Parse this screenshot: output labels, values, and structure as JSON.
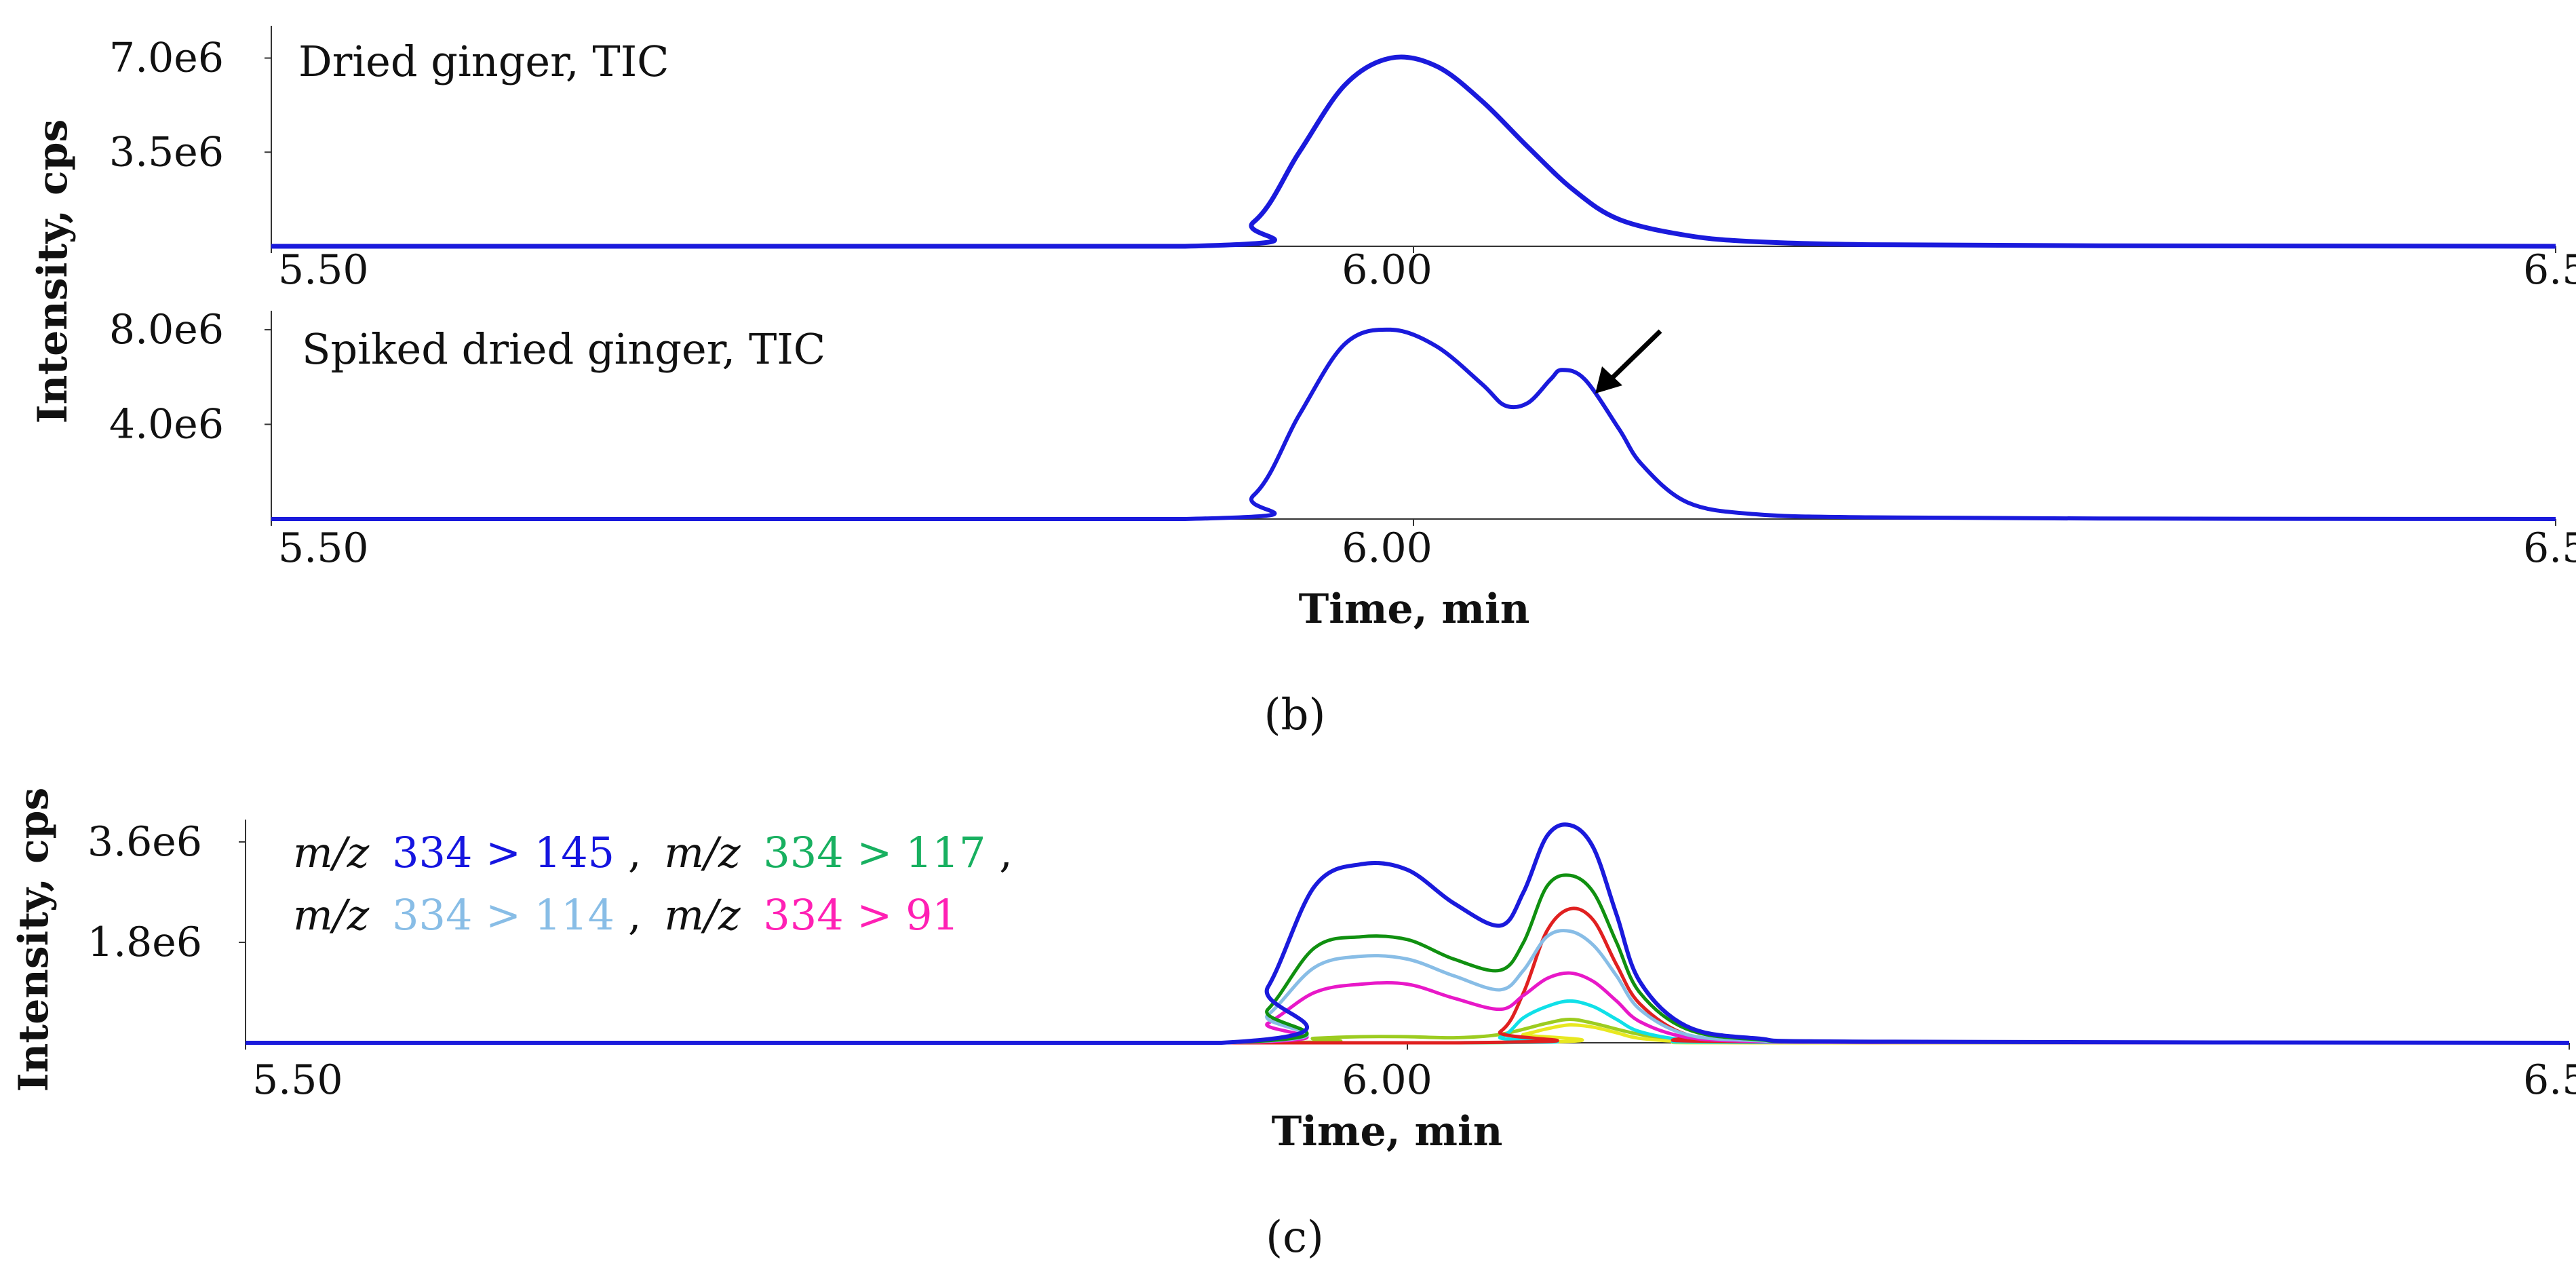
{
  "colors": {
    "tic": "#1a1adc",
    "m145": "#1a1adc",
    "m117": "#109010",
    "m114": "#88bde6",
    "m91": "#e818c8",
    "red": "#e02020",
    "cyan": "#10e0e8",
    "yellow": "#e8e820",
    "olive": "#9ccc20",
    "legend_145": "#1515e0",
    "legend_117": "#18b060",
    "legend_114": "#88bde6",
    "legend_91": "#ff20b4"
  },
  "panels": {
    "b_label": "(b)",
    "c_label": "(c)",
    "b_ylabel": "Intensity, cps",
    "c_ylabel": "Intensity, cps",
    "b_xlabel": "Time, min",
    "c_xlabel": "Time, min"
  },
  "legend": {
    "mz": "m/z",
    "s145": "334 > 145",
    "s117": "334 > 117",
    "s114": "334 > 114",
    "s91": "334 > 91",
    "comma": ","
  },
  "chart_data": [
    {
      "type": "line",
      "title": "Dried ginger, TIC",
      "xlabel": "",
      "ylabel": "Intensity, cps",
      "xlim": [
        5.5,
        6.5
      ],
      "ylim": [
        0,
        8200000
      ],
      "xticks": [
        "5.50",
        "6.00",
        "6.50"
      ],
      "xtick_values": [
        5.5,
        6.0,
        6.5
      ],
      "yticks": [
        "7.0e6",
        "3.5e6"
      ],
      "ytick_values": [
        7000000,
        3500000
      ],
      "series": [
        {
          "name": "TIC",
          "color": "#1a1adc",
          "x": [
            5.5,
            5.9,
            5.93,
            5.95,
            5.97,
            5.99,
            6.01,
            6.03,
            6.05,
            6.07,
            6.09,
            6.12,
            6.15,
            6.2,
            6.3,
            6.5
          ],
          "y": [
            0,
            0,
            900000,
            3500000,
            6000000,
            7000000,
            6700000,
            5400000,
            3700000,
            2100000,
            1000000,
            400000,
            170000,
            60000,
            20000,
            0
          ]
        }
      ]
    },
    {
      "type": "line",
      "title": "Spiked dried ginger, TIC",
      "xlabel": "Time, min",
      "ylabel": "Intensity, cps",
      "xlim": [
        5.5,
        6.5
      ],
      "ylim": [
        0,
        8800000
      ],
      "xticks": [
        "5.50",
        "6.00",
        "6.50"
      ],
      "xtick_values": [
        5.5,
        6.0,
        6.5
      ],
      "yticks": [
        "8.0e6",
        "4.0e6"
      ],
      "ytick_values": [
        8000000,
        4000000
      ],
      "annotation": "arrow pointing at the second peak near 6.07 min",
      "series": [
        {
          "name": "TIC",
          "color": "#1a1adc",
          "x": [
            5.5,
            5.9,
            5.93,
            5.95,
            5.97,
            5.99,
            6.01,
            6.03,
            6.04,
            6.05,
            6.06,
            6.065,
            6.075,
            6.09,
            6.1,
            6.12,
            6.15,
            6.2,
            6.3,
            6.5
          ],
          "y": [
            0,
            0,
            1000000,
            4400000,
            7400000,
            8000000,
            7300000,
            5700000,
            4800000,
            4900000,
            5900000,
            6300000,
            5900000,
            3800000,
            2300000,
            700000,
            200000,
            70000,
            20000,
            0
          ]
        }
      ]
    },
    {
      "type": "line",
      "title": "m/z 334 > 145, m/z 334 > 117, m/z 334 > 114, m/z 334 > 91",
      "xlabel": "Time, min",
      "ylabel": "Intensity, cps",
      "xlim": [
        5.5,
        6.5
      ],
      "ylim": [
        0,
        4000000
      ],
      "xticks": [
        "5.50",
        "6.00",
        "6.50"
      ],
      "xtick_values": [
        5.5,
        6.0,
        6.5
      ],
      "yticks": [
        "3.6e6",
        "1.8e6"
      ],
      "ytick_values": [
        3600000,
        1800000
      ],
      "series": [
        {
          "name": "m/z 334 > 145",
          "color": "#1a1adc",
          "x": [
            5.5,
            5.92,
            5.94,
            5.96,
            5.98,
            6.0,
            6.02,
            6.04,
            6.05,
            6.06,
            6.07,
            6.08,
            6.09,
            6.1,
            6.12,
            6.15,
            6.2,
            6.5
          ],
          "y": [
            0,
            0,
            1000000,
            2800000,
            3200000,
            3100000,
            2500000,
            2100000,
            2700000,
            3700000,
            3900000,
            3500000,
            2300000,
            1100000,
            300000,
            80000,
            20000,
            0
          ]
        },
        {
          "name": "m/z 334 > 117",
          "color": "#109010",
          "x": [
            5.5,
            5.92,
            5.94,
            5.96,
            5.98,
            6.0,
            6.02,
            6.04,
            6.05,
            6.06,
            6.07,
            6.08,
            6.09,
            6.1,
            6.12,
            6.15,
            6.2,
            6.5
          ],
          "y": [
            0,
            0,
            600000,
            1700000,
            1900000,
            1850000,
            1500000,
            1300000,
            1800000,
            2800000,
            3000000,
            2700000,
            1800000,
            900000,
            250000,
            60000,
            15000,
            0
          ]
        },
        {
          "name": "m/z 334 > 114",
          "color": "#88bde6",
          "x": [
            5.5,
            5.92,
            5.94,
            5.96,
            5.98,
            6.0,
            6.02,
            6.04,
            6.05,
            6.06,
            6.07,
            6.08,
            6.09,
            6.1,
            6.12,
            6.15,
            6.2,
            6.5
          ],
          "y": [
            0,
            0,
            500000,
            1350000,
            1550000,
            1500000,
            1200000,
            950000,
            1300000,
            1900000,
            2000000,
            1750000,
            1200000,
            600000,
            150000,
            40000,
            10000,
            0
          ]
        },
        {
          "name": "m/z 334 > 91",
          "color": "#e818c8",
          "x": [
            5.5,
            5.92,
            5.94,
            5.96,
            5.98,
            6.0,
            6.02,
            6.04,
            6.05,
            6.06,
            6.07,
            6.08,
            6.09,
            6.1,
            6.12,
            6.15,
            6.2,
            6.5
          ],
          "y": [
            0,
            0,
            350000,
            900000,
            1050000,
            1050000,
            800000,
            600000,
            850000,
            1150000,
            1250000,
            1100000,
            750000,
            380000,
            100000,
            25000,
            5000,
            0
          ]
        },
        {
          "name": "unlabeled red",
          "color": "#e02020",
          "x": [
            5.5,
            6.02,
            6.04,
            6.05,
            6.06,
            6.07,
            6.08,
            6.09,
            6.1,
            6.12,
            6.15,
            6.5
          ],
          "y": [
            0,
            0,
            200000,
            900000,
            2000000,
            2400000,
            2200000,
            1400000,
            700000,
            150000,
            20000,
            0
          ]
        },
        {
          "name": "unlabeled cyan",
          "color": "#10e0e8",
          "x": [
            5.5,
            6.02,
            6.04,
            6.05,
            6.06,
            6.07,
            6.08,
            6.09,
            6.1,
            6.12,
            6.15,
            6.5
          ],
          "y": [
            0,
            0,
            100000,
            450000,
            650000,
            750000,
            650000,
            420000,
            200000,
            50000,
            8000,
            0
          ]
        },
        {
          "name": "unlabeled yellow",
          "color": "#e8e820",
          "x": [
            5.5,
            6.03,
            6.05,
            6.06,
            6.07,
            6.08,
            6.09,
            6.1,
            6.12,
            6.15,
            6.5
          ],
          "y": [
            0,
            0,
            150000,
            250000,
            320000,
            280000,
            180000,
            80000,
            20000,
            0,
            0
          ]
        },
        {
          "name": "unlabeled olive",
          "color": "#9ccc20",
          "x": [
            5.5,
            5.93,
            5.96,
            5.98,
            6.0,
            6.02,
            6.04,
            6.06,
            6.07,
            6.08,
            6.1,
            6.12,
            6.15,
            6.5
          ],
          "y": [
            0,
            0,
            80000,
            110000,
            110000,
            90000,
            150000,
            350000,
            420000,
            350000,
            150000,
            40000,
            5000,
            0
          ]
        }
      ]
    }
  ]
}
